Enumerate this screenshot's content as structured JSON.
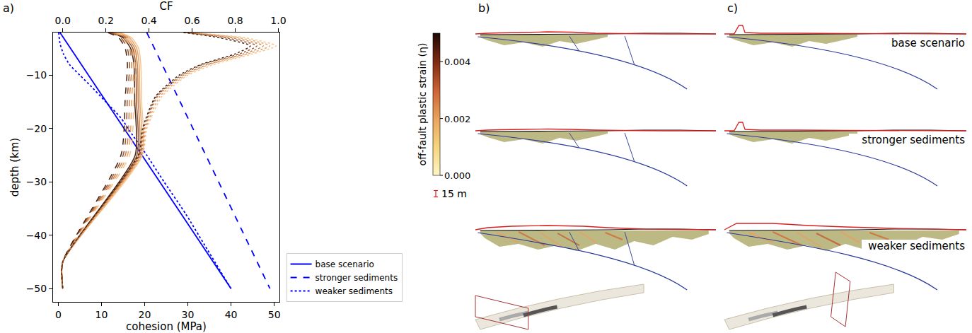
{
  "chart_data": {
    "type": "line",
    "panel_label": "a)",
    "xlabel": "cohesion (MPa)",
    "x2label": "CF",
    "ylabel": "depth (km)",
    "xlim": [
      -1.2,
      51.2
    ],
    "xticks": [
      0,
      10,
      20,
      30,
      40,
      50
    ],
    "x2lim": [
      -0.045,
      1.005
    ],
    "x2ticks": [
      {
        "value": 0,
        "label": "0.0"
      },
      0.2,
      0.4,
      0.6,
      0.8,
      {
        "value": 1,
        "label": "1.0"
      }
    ],
    "ylim": [
      -52.5,
      -2.0
    ],
    "yticks": [
      {
        "value": -50,
        "label": "−50"
      },
      {
        "value": -40,
        "label": "−40"
      },
      {
        "value": -30,
        "label": "−30"
      },
      {
        "value": -20,
        "label": "−20"
      },
      {
        "value": -10,
        "label": "−10"
      }
    ],
    "legend": "right",
    "series": [
      {
        "color": "#f7c58f",
        "line_style": "solid",
        "axis": "x2",
        "x": [
          0.265,
          0.32,
          0.352,
          0.362,
          0.366,
          0.368,
          0,
          0
        ],
        "y": [
          -2,
          -3,
          -5,
          -8,
          -15,
          -25,
          -45,
          -50
        ]
      },
      {
        "color": "#e9a46a",
        "line_style": "solid",
        "axis": "x2",
        "x": [
          0.255,
          0.31,
          0.343,
          0.354,
          0.358,
          0.36,
          0,
          0
        ],
        "y": [
          -2,
          -3,
          -5,
          -8,
          -15,
          -25,
          -45,
          -50
        ]
      },
      {
        "color": "#cc8049",
        "line_style": "solid",
        "axis": "x2",
        "x": [
          0.245,
          0.3,
          0.334,
          0.346,
          0.35,
          0.352,
          0,
          0
        ],
        "y": [
          -2,
          -3,
          -5,
          -8,
          -15,
          -25,
          -45,
          -50
        ]
      },
      {
        "color": "#955632",
        "line_style": "solid",
        "axis": "x2",
        "x": [
          0.235,
          0.29,
          0.325,
          0.338,
          0.342,
          0.344,
          0,
          0
        ],
        "y": [
          -2,
          -3,
          -5,
          -8,
          -15,
          -25,
          -45,
          -50
        ]
      },
      {
        "color": "#4a2510",
        "line_style": "solid",
        "axis": "x2",
        "x": [
          0.225,
          0.28,
          0.315,
          0.33,
          0.334,
          0.336,
          0,
          0
        ],
        "y": [
          -2,
          -3,
          -5,
          -8,
          -15,
          -25,
          -45,
          -50
        ]
      },
      {
        "color": "#f7c58f",
        "line_style": "dashed",
        "axis": "x2",
        "x": [
          0.25,
          0.3,
          0.33,
          0.34,
          0.33,
          0.31,
          0,
          0
        ],
        "y": [
          -2,
          -3,
          -5,
          -8,
          -14,
          -25,
          -45,
          -50
        ]
      },
      {
        "color": "#e9a46a",
        "line_style": "dashed",
        "axis": "x2",
        "x": [
          0.24,
          0.29,
          0.32,
          0.33,
          0.32,
          0.3,
          0,
          0
        ],
        "y": [
          -2,
          -3,
          -5,
          -8,
          -14,
          -25,
          -45,
          -50
        ]
      },
      {
        "color": "#cc8049",
        "line_style": "dashed",
        "axis": "x2",
        "x": [
          0.23,
          0.28,
          0.31,
          0.32,
          0.31,
          0.29,
          0,
          0
        ],
        "y": [
          -2,
          -3,
          -5,
          -8,
          -14,
          -25,
          -45,
          -50
        ]
      },
      {
        "color": "#955632",
        "line_style": "dashed",
        "axis": "x2",
        "x": [
          0.22,
          0.27,
          0.3,
          0.31,
          0.3,
          0.28,
          0,
          0
        ],
        "y": [
          -2,
          -3,
          -5,
          -8,
          -14,
          -25,
          -45,
          -50
        ]
      },
      {
        "color": "#4a2510",
        "line_style": "dashed",
        "axis": "x2",
        "x": [
          0.21,
          0.26,
          0.29,
          0.3,
          0.29,
          0.27,
          0,
          0
        ],
        "y": [
          -2,
          -3,
          -5,
          -8,
          -14,
          -25,
          -45,
          -50
        ]
      },
      {
        "color": "#f7c58f",
        "line_style": "dotted",
        "axis": "x2",
        "x": [
          0.6,
          0.85,
          0.99,
          0.88,
          0.7,
          0.58,
          0.46,
          0.39,
          0.37,
          0,
          0
        ],
        "y": [
          -2,
          -3,
          -4.5,
          -6,
          -8,
          -10,
          -14,
          -20,
          -25,
          -45,
          -50
        ]
      },
      {
        "color": "#e9a46a",
        "line_style": "dotted",
        "axis": "x2",
        "x": [
          0.59,
          0.82,
          0.96,
          0.86,
          0.68,
          0.57,
          0.45,
          0.385,
          0.365,
          0,
          0
        ],
        "y": [
          -2,
          -3,
          -4.5,
          -6,
          -8,
          -10,
          -14,
          -20,
          -25,
          -45,
          -50
        ]
      },
      {
        "color": "#cc8049",
        "line_style": "dotted",
        "axis": "x2",
        "x": [
          0.58,
          0.79,
          0.93,
          0.84,
          0.67,
          0.56,
          0.44,
          0.38,
          0.36,
          0,
          0
        ],
        "y": [
          -2,
          -3,
          -4.5,
          -6,
          -8,
          -10,
          -14,
          -20,
          -25,
          -45,
          -50
        ]
      },
      {
        "color": "#955632",
        "line_style": "dotted",
        "axis": "x2",
        "x": [
          0.57,
          0.76,
          0.9,
          0.82,
          0.65,
          0.55,
          0.435,
          0.375,
          0.355,
          0,
          0
        ],
        "y": [
          -2,
          -3,
          -4.5,
          -6,
          -8,
          -10,
          -14,
          -20,
          -25,
          -45,
          -50
        ]
      },
      {
        "color": "#4a2510",
        "line_style": "dotted",
        "axis": "x2",
        "x": [
          0.56,
          0.73,
          0.87,
          0.8,
          0.64,
          0.54,
          0.43,
          0.37,
          0.35,
          0,
          0
        ],
        "y": [
          -2,
          -3,
          -4.5,
          -6,
          -8,
          -10,
          -14,
          -20,
          -25,
          -45,
          -50
        ]
      },
      {
        "name": "base scenario",
        "color": "#0000ff",
        "line_style": "solid",
        "axis": "x",
        "x": [
          0.4,
          40
        ],
        "y": [
          -2,
          -50
        ]
      },
      {
        "name": "stronger sediments",
        "color": "#0000ff",
        "line_style": "dashed",
        "axis": "x",
        "x": [
          20.5,
          49
        ],
        "y": [
          -2,
          -50
        ]
      },
      {
        "name": "weaker sediments",
        "color": "#0000ff",
        "line_style": "dotted",
        "axis": "x",
        "x": [
          0.1,
          0.4,
          1.2,
          2.6,
          5,
          7.5,
          11,
          14.5,
          17,
          20.5,
          24.5,
          29.5,
          34,
          40
        ],
        "y": [
          -2,
          -4,
          -6,
          -8,
          -10,
          -12,
          -15,
          -18,
          -21,
          -25,
          -30,
          -36,
          -42,
          -50
        ]
      }
    ]
  },
  "colorbar": {
    "title": "off-fault plastic strain (η)",
    "range": [
      0,
      0.005
    ],
    "ticks": [
      {
        "value": 0,
        "label": "0.000"
      },
      {
        "value": 0.002,
        "label": "0.002"
      },
      {
        "value": 0.004,
        "label": "0.004"
      }
    ]
  },
  "scale_bar": {
    "value": 15,
    "label": "15 m"
  },
  "panels": [
    {
      "label": "b)"
    },
    {
      "label": "c)",
      "row_labels": [
        "base scenario",
        "stronger sediments",
        "weaker sediments"
      ]
    }
  ]
}
